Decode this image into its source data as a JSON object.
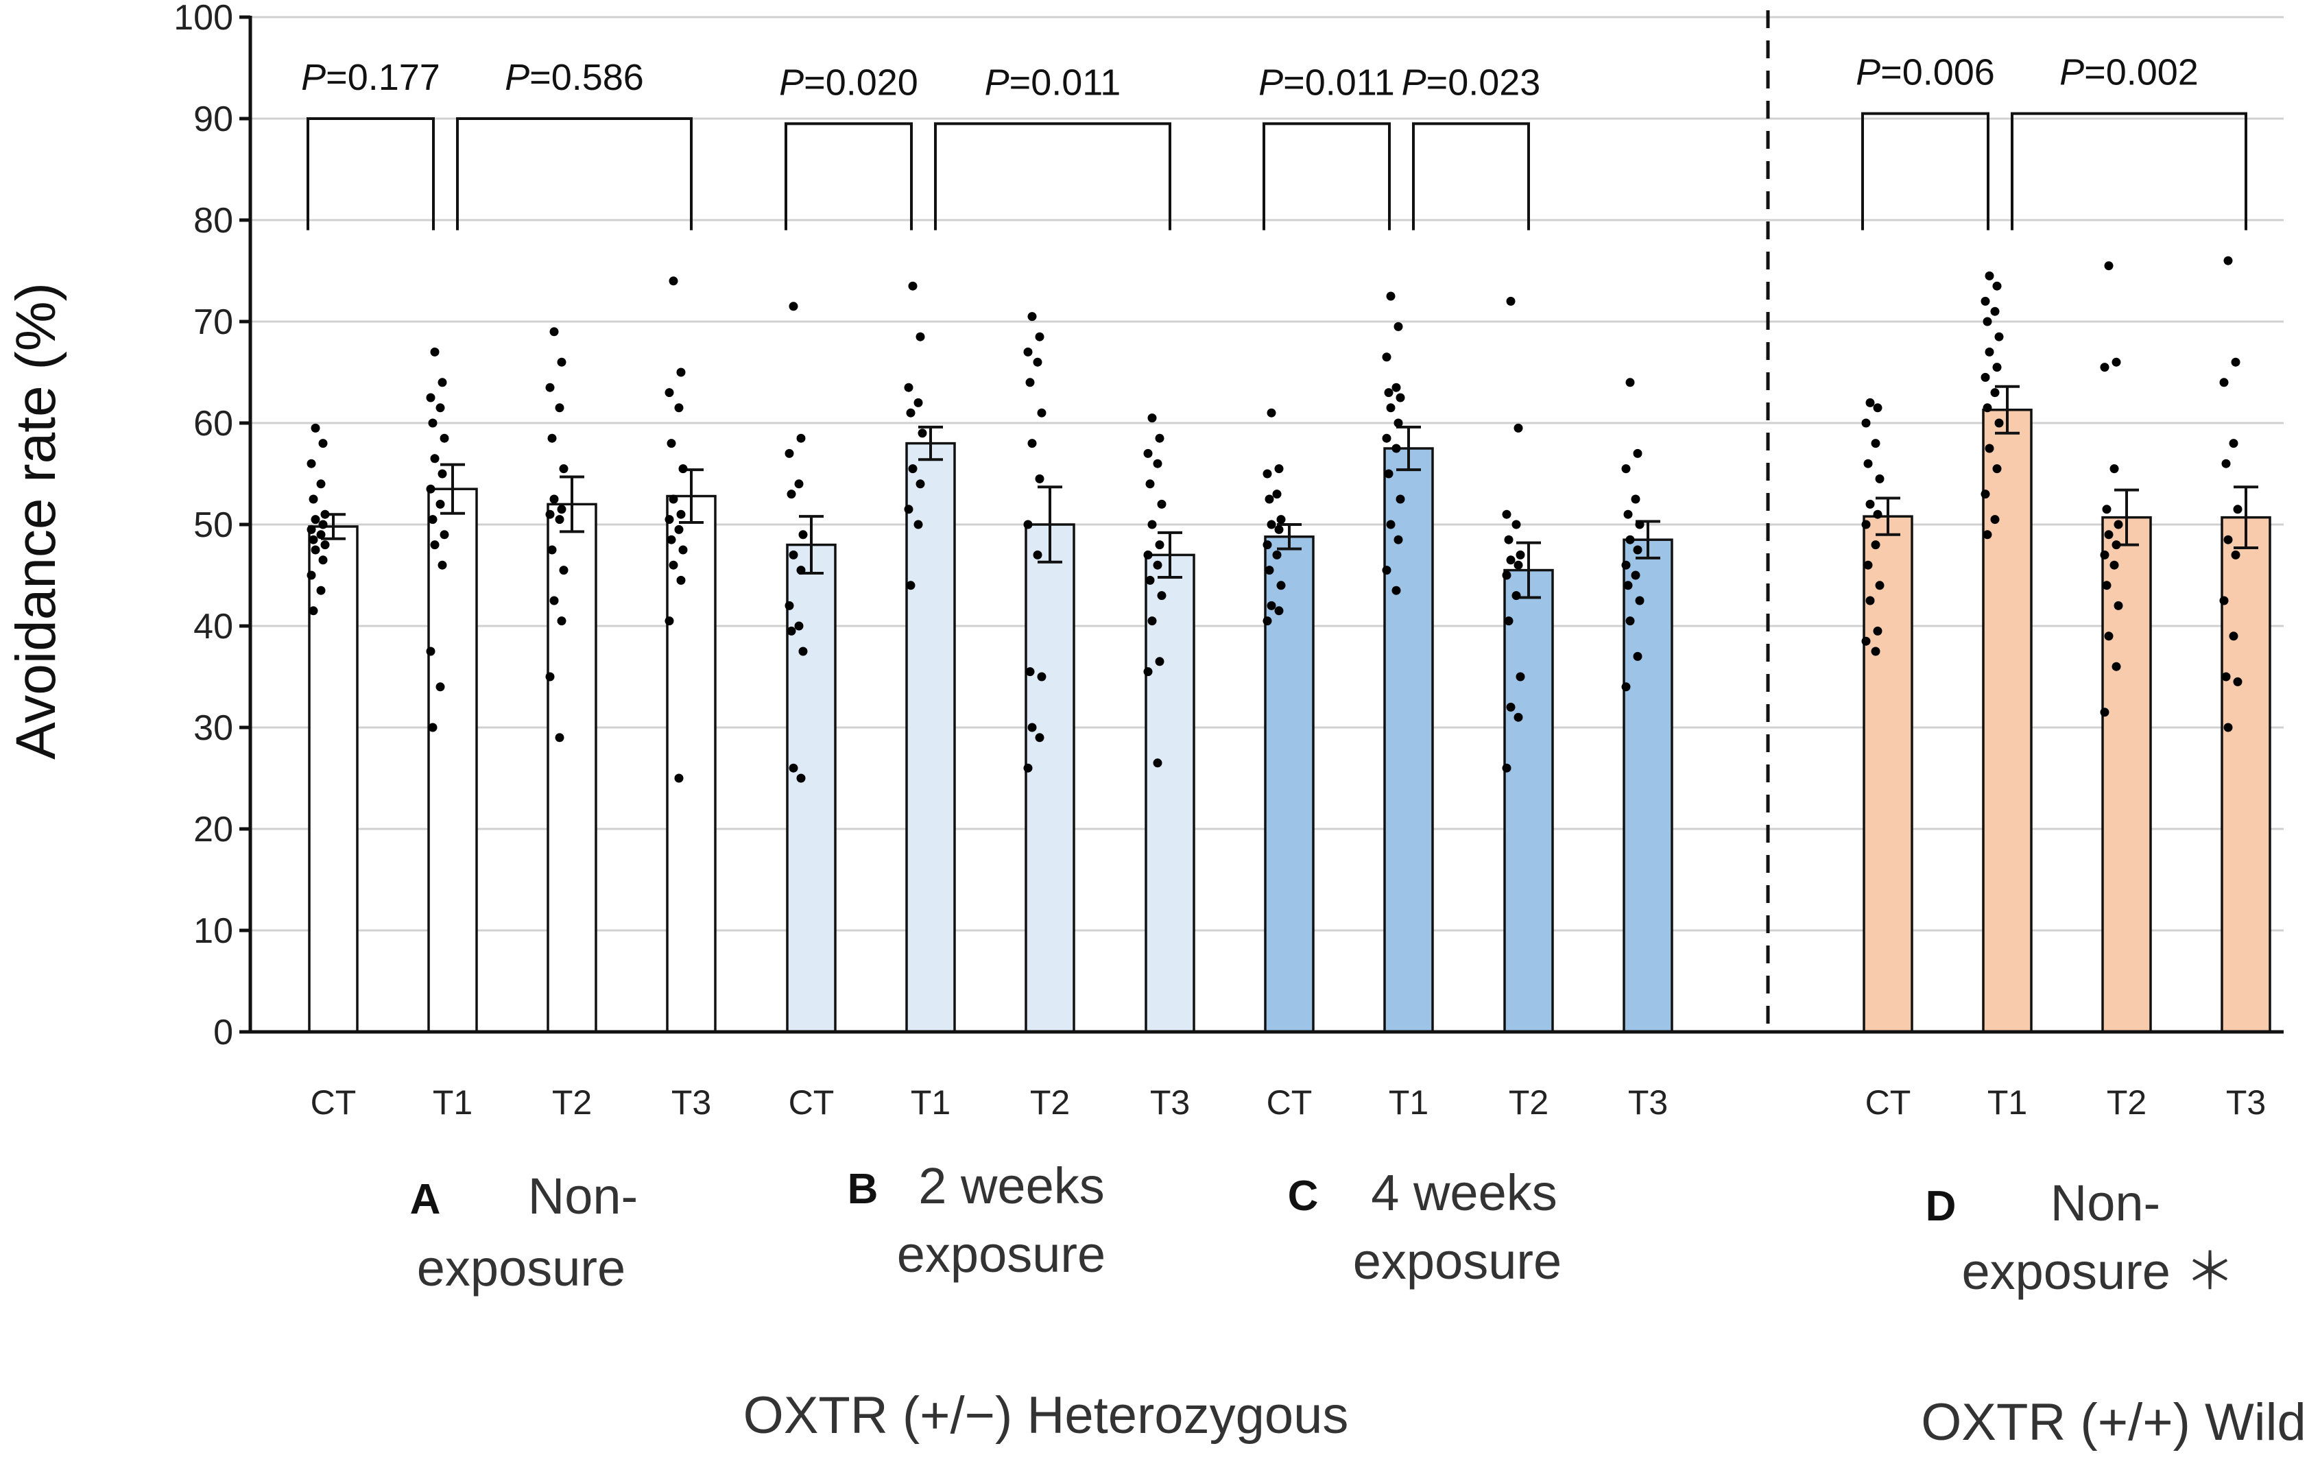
{
  "chart_data": {
    "type": "bar",
    "ylabel": "Avoidance rate (%)",
    "ylim": [
      0,
      100
    ],
    "yticks": [
      0,
      10,
      20,
      30,
      40,
      50,
      60,
      70,
      80,
      90,
      100
    ],
    "grid": true,
    "colors": {
      "A": "#ffffff",
      "B": "#deebf7",
      "C": "#9dc3e6",
      "D": "#f8cbad"
    },
    "bars": [
      {
        "group": "A",
        "label": "CT",
        "value": 49.8,
        "err": 1.2,
        "points": [
          59.5,
          58,
          56,
          54,
          52.5,
          51,
          50.5,
          50,
          49.5,
          49,
          48.5,
          48,
          47.5,
          46.5,
          45,
          43.5,
          41.5
        ]
      },
      {
        "group": "A",
        "label": "T1",
        "value": 53.5,
        "err": 2.4,
        "points": [
          67,
          64,
          62.5,
          61.5,
          60,
          58.5,
          56.5,
          55,
          53.5,
          52,
          50.5,
          49,
          48,
          46,
          37.5,
          34,
          30
        ]
      },
      {
        "group": "A",
        "label": "T2",
        "value": 52.0,
        "err": 2.7,
        "points": [
          69,
          66,
          63.5,
          61.5,
          58.5,
          55.5,
          52.5,
          51.5,
          51,
          50.5,
          47.5,
          45.5,
          42.5,
          40.5,
          35,
          29
        ]
      },
      {
        "group": "A",
        "label": "T3",
        "value": 52.8,
        "err": 2.6,
        "points": [
          74,
          65,
          63,
          61.5,
          58,
          55.5,
          52.5,
          51,
          50.5,
          49.5,
          48.5,
          47.5,
          46,
          44.5,
          40.5,
          25
        ]
      },
      {
        "group": "B",
        "label": "CT",
        "value": 48.0,
        "err": 2.8,
        "points": [
          71.5,
          58.5,
          57,
          54,
          53,
          49,
          47,
          45.5,
          42,
          40,
          39.5,
          37.5,
          26,
          25
        ]
      },
      {
        "group": "B",
        "label": "T1",
        "value": 58.0,
        "err": 1.6,
        "points": [
          73.5,
          68.5,
          63.5,
          62,
          61,
          59,
          55.5,
          54,
          51.5,
          50,
          44
        ]
      },
      {
        "group": "B",
        "label": "T2",
        "value": 50.0,
        "err": 3.7,
        "points": [
          70.5,
          68.5,
          67,
          66,
          64,
          61,
          58,
          54.5,
          50,
          47,
          35.5,
          35,
          30,
          29,
          26
        ]
      },
      {
        "group": "B",
        "label": "T3",
        "value": 47.0,
        "err": 2.2,
        "points": [
          60.5,
          58.5,
          57,
          56,
          54,
          52,
          50,
          48,
          47,
          46,
          44.5,
          43,
          40.5,
          36.5,
          35.5,
          26.5
        ]
      },
      {
        "group": "C",
        "label": "CT",
        "value": 48.8,
        "err": 1.2,
        "points": [
          61,
          55.5,
          55,
          53,
          52.5,
          50.5,
          50,
          49.5,
          48,
          47,
          45.5,
          44,
          42,
          41.5,
          40.5
        ]
      },
      {
        "group": "C",
        "label": "T1",
        "value": 57.5,
        "err": 2.1,
        "points": [
          72.5,
          69.5,
          66.5,
          63.5,
          63,
          62.5,
          61.5,
          60,
          58.5,
          57.5,
          55,
          52.5,
          50,
          48.5,
          45.5,
          43.5
        ]
      },
      {
        "group": "C",
        "label": "T2",
        "value": 45.5,
        "err": 2.7,
        "points": [
          72,
          59.5,
          51,
          50,
          48.5,
          47,
          46.5,
          46,
          45,
          43,
          40.5,
          35,
          32,
          31,
          26
        ]
      },
      {
        "group": "C",
        "label": "T3",
        "value": 48.5,
        "err": 1.8,
        "points": [
          64,
          57,
          55.5,
          52.5,
          51,
          50,
          48.5,
          47.5,
          46,
          45,
          44,
          42.5,
          40.5,
          37,
          34
        ]
      },
      {
        "group": "D",
        "label": "CT",
        "value": 50.8,
        "err": 1.8,
        "points": [
          62,
          61.5,
          60,
          58,
          56,
          54.5,
          52,
          51,
          50,
          48,
          46,
          44,
          42.5,
          39.5,
          38.5,
          37.5
        ]
      },
      {
        "group": "D",
        "label": "T1",
        "value": 61.3,
        "err": 2.3,
        "points": [
          74.5,
          73.5,
          72,
          71,
          70,
          68.5,
          67,
          65.5,
          64.5,
          63,
          61.5,
          60,
          57.5,
          55.5,
          53,
          50.5,
          49
        ]
      },
      {
        "group": "D",
        "label": "T2",
        "value": 50.7,
        "err": 2.7,
        "points": [
          75.5,
          66,
          65.5,
          55.5,
          51.5,
          50,
          49,
          48,
          47,
          46,
          44,
          42,
          39,
          36,
          31.5
        ]
      },
      {
        "group": "D",
        "label": "T3",
        "value": 50.7,
        "err": 3.0,
        "points": [
          76,
          66,
          64,
          58,
          56,
          51.5,
          48.5,
          47,
          42.5,
          39,
          35,
          34.5,
          30
        ]
      }
    ],
    "comparisons": [
      {
        "p_label": "P",
        "p_value": "=0.177",
        "from": 0,
        "to": 1,
        "y_top": 90,
        "y_bottom": 79
      },
      {
        "p_label": "P",
        "p_value": "=0.586",
        "from": 1,
        "to": 3,
        "y_top": 90,
        "y_bottom": 79
      },
      {
        "p_label": "P",
        "p_value": "=0.020",
        "from": 4,
        "to": 5,
        "y_top": 89.5,
        "y_bottom": 79
      },
      {
        "p_label": "P",
        "p_value": "=0.011",
        "from": 5,
        "to": 7,
        "y_top": 89.5,
        "y_bottom": 79
      },
      {
        "p_label": "P",
        "p_value": "=0.011",
        "from": 8,
        "to": 9,
        "y_top": 89.5,
        "y_bottom": 79
      },
      {
        "p_label": "P",
        "p_value": "=0.023",
        "from": 9,
        "to": 10,
        "y_top": 89.5,
        "y_bottom": 79
      },
      {
        "p_label": "P",
        "p_value": "=0.006",
        "from": 12,
        "to": 13,
        "y_top": 90.5,
        "y_bottom": 79
      },
      {
        "p_label": "P",
        "p_value": "=0.002",
        "from": 13,
        "to": 15,
        "y_top": 90.5,
        "y_bottom": 79
      }
    ],
    "groups": [
      {
        "letter": "A",
        "line1": "Non-",
        "line2": "exposure"
      },
      {
        "letter": "B",
        "line1": "2 weeks",
        "line2": "exposure"
      },
      {
        "letter": "C",
        "line1": "4 weeks",
        "line2": "exposure"
      },
      {
        "letter": "D",
        "line1": "Non-",
        "line2": "exposure ＊"
      }
    ],
    "genotypes": [
      {
        "label": "OXTR (+/−) Heterozygous"
      },
      {
        "label": "OXTR (+/+) Wild"
      }
    ]
  }
}
